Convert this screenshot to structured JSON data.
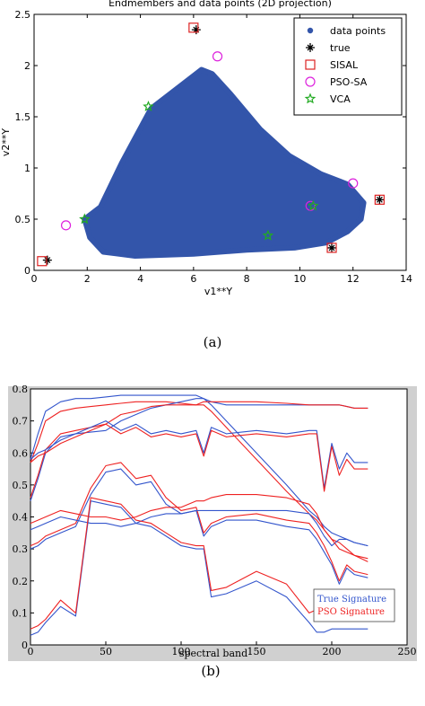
{
  "figure": {
    "caption_a": "(a)",
    "caption_b": "(b)"
  },
  "chart_data": [
    {
      "type": "scatter",
      "title": "Endmembers and data points (2D projection)",
      "xlabel": "v1**Y",
      "ylabel": "v2**Y",
      "xlim": [
        0,
        14
      ],
      "ylim": [
        0,
        2.5
      ],
      "xticks": [
        0,
        2,
        4,
        6,
        8,
        10,
        12,
        14
      ],
      "yticks": [
        0,
        0.5,
        1,
        1.5,
        2,
        2.5
      ],
      "grid": false,
      "legend_position": "top-right",
      "data_cloud_outline": [
        [
          1.9,
          0.5
        ],
        [
          2.5,
          0.62
        ],
        [
          3.3,
          1.05
        ],
        [
          4.4,
          1.58
        ],
        [
          5.6,
          1.82
        ],
        [
          6.3,
          1.96
        ],
        [
          6.7,
          1.92
        ],
        [
          7.4,
          1.72
        ],
        [
          8.5,
          1.38
        ],
        [
          9.6,
          1.12
        ],
        [
          10.8,
          0.94
        ],
        [
          11.8,
          0.84
        ],
        [
          12.4,
          0.66
        ],
        [
          12.3,
          0.5
        ],
        [
          11.8,
          0.38
        ],
        [
          11.0,
          0.27
        ],
        [
          9.8,
          0.22
        ],
        [
          8.0,
          0.2
        ],
        [
          6.0,
          0.16
        ],
        [
          3.8,
          0.14
        ],
        [
          2.6,
          0.18
        ],
        [
          2.1,
          0.32
        ]
      ],
      "series": [
        {
          "name": "data points",
          "marker": "dot",
          "color": "#3355aa",
          "points": []
        },
        {
          "name": "true",
          "marker": "star-plus",
          "color": "#000000",
          "points": [
            [
              0.5,
              0.1
            ],
            [
              6.1,
              2.35
            ],
            [
              11.2,
              0.22
            ],
            [
              13.0,
              0.69
            ]
          ]
        },
        {
          "name": "SISAL",
          "marker": "square",
          "color": "#dd2222",
          "points": [
            [
              0.3,
              0.09
            ],
            [
              6.0,
              2.37
            ],
            [
              11.2,
              0.22
            ],
            [
              13.0,
              0.69
            ]
          ]
        },
        {
          "name": "PSO-SA",
          "marker": "circle",
          "color": "#dd22dd",
          "points": [
            [
              1.2,
              0.44
            ],
            [
              6.9,
              2.09
            ],
            [
              10.4,
              0.63
            ],
            [
              12.0,
              0.85
            ]
          ]
        },
        {
          "name": "VCA",
          "marker": "star",
          "color": "#22aa22",
          "points": [
            [
              1.9,
              0.5
            ],
            [
              4.3,
              1.6
            ],
            [
              8.8,
              0.34
            ],
            [
              10.5,
              0.63
            ]
          ]
        }
      ]
    },
    {
      "type": "line",
      "xlabel": "spectral band",
      "ylabel": "",
      "xlim": [
        0,
        250
      ],
      "ylim": [
        0,
        0.8
      ],
      "xticks": [
        0,
        50,
        100,
        150,
        200,
        250
      ],
      "yticks": [
        0,
        0.1,
        0.2,
        0.3,
        0.4,
        0.5,
        0.6,
        0.7,
        0.8
      ],
      "grid": false,
      "legend_position": "bottom-right",
      "legend": [
        {
          "name": "True Signature",
          "color": "#3355cc"
        },
        {
          "name": "PSO Signature",
          "color": "#ee2222"
        }
      ],
      "x": [
        0,
        5,
        10,
        20,
        30,
        40,
        50,
        60,
        70,
        80,
        90,
        100,
        110,
        115,
        120,
        130,
        150,
        170,
        185,
        190,
        195,
        200,
        205,
        210,
        215,
        224
      ],
      "series": [
        {
          "name": "True Signature",
          "values": [
            0.58,
            0.66,
            0.73,
            0.76,
            0.77,
            0.77,
            0.775,
            0.78,
            0.78,
            0.78,
            0.78,
            0.78,
            0.78,
            0.77,
            0.75,
            0.7,
            0.6,
            0.5,
            0.42,
            0.4,
            0.37,
            0.35,
            0.34,
            0.33,
            0.32,
            0.31
          ]
        },
        {
          "name": "PSO Signature",
          "values": [
            0.57,
            0.63,
            0.7,
            0.73,
            0.74,
            0.745,
            0.75,
            0.755,
            0.76,
            0.76,
            0.76,
            0.755,
            0.75,
            0.75,
            0.73,
            0.68,
            0.58,
            0.48,
            0.41,
            0.39,
            0.36,
            0.33,
            0.32,
            0.3,
            0.28,
            0.26
          ]
        },
        {
          "name": "True Signature",
          "values": [
            0.45,
            0.52,
            0.6,
            0.65,
            0.66,
            0.665,
            0.67,
            0.7,
            0.72,
            0.74,
            0.75,
            0.76,
            0.77,
            0.77,
            0.76,
            0.75,
            0.75,
            0.75,
            0.75,
            0.75,
            0.75,
            0.75,
            0.75,
            0.745,
            0.74,
            0.74
          ]
        },
        {
          "name": "PSO Signature",
          "values": [
            0.46,
            0.53,
            0.61,
            0.66,
            0.67,
            0.68,
            0.69,
            0.72,
            0.73,
            0.745,
            0.75,
            0.75,
            0.75,
            0.76,
            0.76,
            0.76,
            0.76,
            0.755,
            0.75,
            0.75,
            0.75,
            0.75,
            0.75,
            0.745,
            0.74,
            0.74
          ]
        },
        {
          "name": "True Signature",
          "values": [
            0.58,
            0.6,
            0.61,
            0.64,
            0.66,
            0.68,
            0.7,
            0.67,
            0.69,
            0.66,
            0.67,
            0.66,
            0.67,
            0.6,
            0.68,
            0.66,
            0.67,
            0.66,
            0.67,
            0.67,
            0.49,
            0.63,
            0.55,
            0.6,
            0.57,
            0.57
          ]
        },
        {
          "name": "PSO Signature",
          "values": [
            0.57,
            0.59,
            0.6,
            0.63,
            0.65,
            0.67,
            0.69,
            0.66,
            0.68,
            0.65,
            0.66,
            0.65,
            0.66,
            0.59,
            0.67,
            0.65,
            0.66,
            0.65,
            0.66,
            0.66,
            0.48,
            0.62,
            0.53,
            0.58,
            0.55,
            0.55
          ]
        },
        {
          "name": "True Signature",
          "values": [
            0.3,
            0.31,
            0.33,
            0.35,
            0.37,
            0.47,
            0.54,
            0.55,
            0.5,
            0.51,
            0.44,
            0.41,
            0.42,
            0.34,
            0.37,
            0.39,
            0.39,
            0.37,
            0.36,
            0.33,
            0.29,
            0.25,
            0.19,
            0.24,
            0.22,
            0.21
          ]
        },
        {
          "name": "PSO Signature",
          "values": [
            0.31,
            0.32,
            0.34,
            0.36,
            0.38,
            0.49,
            0.56,
            0.57,
            0.52,
            0.53,
            0.46,
            0.42,
            0.43,
            0.35,
            0.38,
            0.4,
            0.41,
            0.39,
            0.38,
            0.35,
            0.31,
            0.26,
            0.2,
            0.25,
            0.23,
            0.22
          ]
        },
        {
          "name": "True Signature",
          "values": [
            0.36,
            0.37,
            0.38,
            0.4,
            0.39,
            0.38,
            0.38,
            0.37,
            0.38,
            0.4,
            0.41,
            0.41,
            0.42,
            0.42,
            0.42,
            0.42,
            0.42,
            0.42,
            0.41,
            0.38,
            0.34,
            0.31,
            0.33,
            0.33,
            0.32,
            0.31
          ]
        },
        {
          "name": "PSO Signature",
          "values": [
            0.38,
            0.39,
            0.4,
            0.42,
            0.41,
            0.4,
            0.4,
            0.39,
            0.4,
            0.42,
            0.43,
            0.43,
            0.45,
            0.45,
            0.46,
            0.47,
            0.47,
            0.46,
            0.44,
            0.41,
            0.36,
            0.33,
            0.3,
            0.29,
            0.28,
            0.27
          ]
        },
        {
          "name": "True Signature",
          "values": [
            0.03,
            0.04,
            0.07,
            0.12,
            0.09,
            0.45,
            0.44,
            0.43,
            0.38,
            0.37,
            0.34,
            0.31,
            0.3,
            0.3,
            0.15,
            0.16,
            0.2,
            0.15,
            0.07,
            0.04,
            0.04,
            0.05,
            0.05,
            0.05,
            0.05,
            0.05
          ]
        },
        {
          "name": "PSO Signature",
          "values": [
            0.05,
            0.06,
            0.08,
            0.14,
            0.1,
            0.46,
            0.45,
            0.44,
            0.39,
            0.38,
            0.35,
            0.32,
            0.31,
            0.31,
            0.17,
            0.18,
            0.23,
            0.19,
            0.1,
            0.11,
            0.11,
            0.12,
            0.12,
            0.12,
            0.12,
            0.12
          ]
        }
      ]
    }
  ]
}
